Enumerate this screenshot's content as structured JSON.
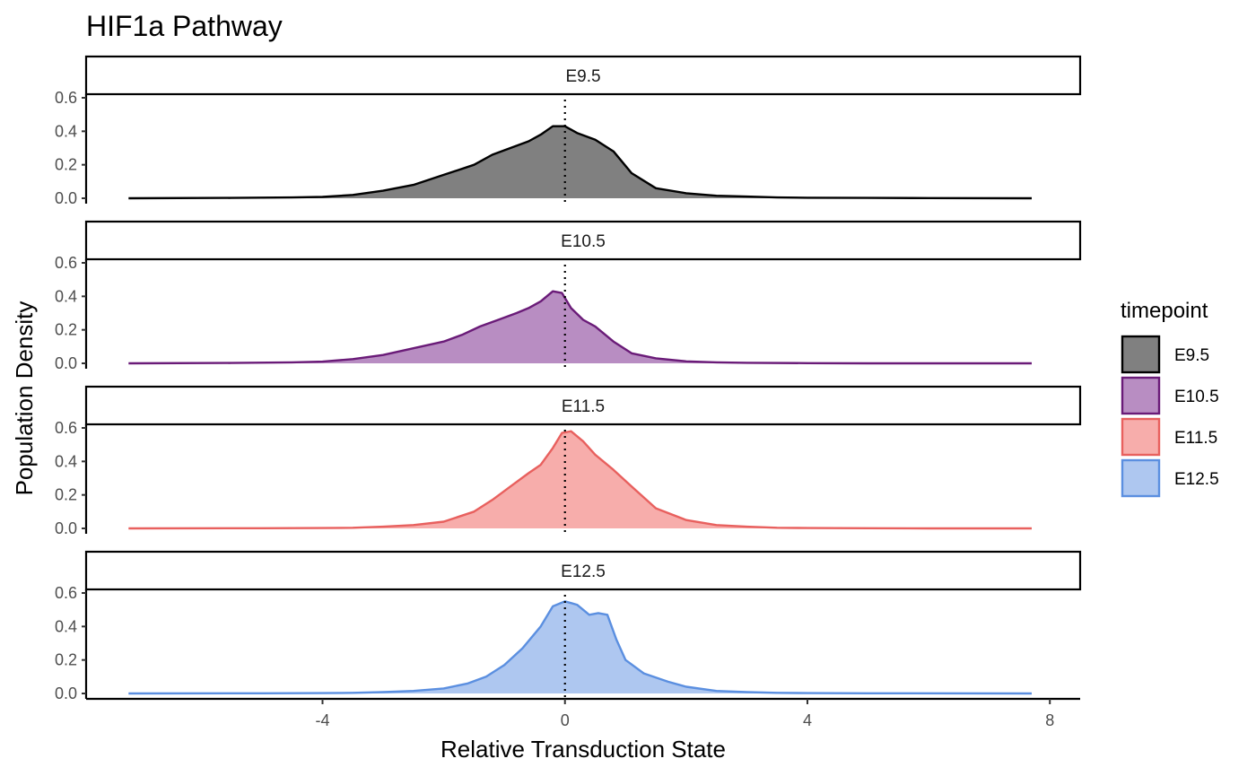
{
  "chart_data": {
    "type": "area",
    "title": "HIF1a Pathway",
    "xlabel": "Relative Transduction State",
    "ylabel": "Population Density",
    "xlim": [
      -7.9,
      8.5
    ],
    "ylim": [
      0,
      0.6
    ],
    "x_ticks": [
      -4,
      0,
      4,
      8
    ],
    "y_ticks": [
      0.0,
      0.2,
      0.4,
      0.6
    ],
    "x_tick_labels": [
      "-4",
      "0",
      "4",
      "8"
    ],
    "y_tick_labels": [
      "0.0",
      "0.2",
      "0.4",
      "0.6"
    ],
    "reference_line_x": 0,
    "reference_line_style": "dotted",
    "grid": false,
    "layout": "facet_wrap, one panel per timepoint stacked vertically",
    "legend": {
      "title": "timepoint",
      "position": "right",
      "entries": [
        "E9.5",
        "E10.5",
        "E11.5",
        "E12.5"
      ]
    },
    "series": [
      {
        "name": "E9.5",
        "strip_label": "E9.5",
        "line_color": "#000000",
        "fill_color": "#808080",
        "x": [
          -7.2,
          -5.5,
          -4.5,
          -4.0,
          -3.5,
          -3.0,
          -2.5,
          -2.0,
          -1.5,
          -1.2,
          -0.9,
          -0.6,
          -0.4,
          -0.2,
          0.0,
          0.2,
          0.5,
          0.8,
          1.1,
          1.5,
          2.0,
          2.5,
          3.0,
          3.5,
          4.0,
          5.0,
          6.0,
          7.7
        ],
        "y": [
          0.0,
          0.002,
          0.005,
          0.008,
          0.02,
          0.045,
          0.08,
          0.14,
          0.2,
          0.26,
          0.3,
          0.34,
          0.38,
          0.43,
          0.43,
          0.39,
          0.35,
          0.28,
          0.15,
          0.06,
          0.03,
          0.015,
          0.01,
          0.005,
          0.003,
          0.002,
          0.001,
          0.0
        ]
      },
      {
        "name": "E10.5",
        "strip_label": "E10.5",
        "line_color": "#6a1b78",
        "fill_color": "#b88dc2",
        "x": [
          -7.2,
          -5.5,
          -4.5,
          -4.0,
          -3.5,
          -3.0,
          -2.5,
          -2.0,
          -1.7,
          -1.4,
          -1.1,
          -0.8,
          -0.6,
          -0.4,
          -0.2,
          -0.05,
          0.1,
          0.3,
          0.5,
          0.8,
          1.1,
          1.5,
          2.0,
          2.5,
          3.0,
          4.0,
          5.0,
          7.7
        ],
        "y": [
          0.0,
          0.002,
          0.006,
          0.01,
          0.025,
          0.05,
          0.09,
          0.13,
          0.17,
          0.22,
          0.26,
          0.3,
          0.33,
          0.37,
          0.43,
          0.42,
          0.33,
          0.26,
          0.22,
          0.13,
          0.06,
          0.03,
          0.012,
          0.006,
          0.003,
          0.001,
          0.0,
          0.0
        ]
      },
      {
        "name": "E11.5",
        "strip_label": "E11.5",
        "line_color": "#e8605e",
        "fill_color": "#f7adab",
        "x": [
          -7.2,
          -5.0,
          -4.0,
          -3.5,
          -3.0,
          -2.5,
          -2.0,
          -1.5,
          -1.2,
          -0.9,
          -0.6,
          -0.4,
          -0.2,
          -0.05,
          0.1,
          0.3,
          0.5,
          0.8,
          1.1,
          1.5,
          2.0,
          2.5,
          3.0,
          3.5,
          4.0,
          5.0,
          6.0,
          7.7
        ],
        "y": [
          0.0,
          0.001,
          0.002,
          0.004,
          0.01,
          0.02,
          0.04,
          0.1,
          0.17,
          0.25,
          0.33,
          0.38,
          0.48,
          0.57,
          0.58,
          0.52,
          0.44,
          0.35,
          0.25,
          0.12,
          0.05,
          0.02,
          0.01,
          0.004,
          0.002,
          0.001,
          0.0,
          0.0
        ]
      },
      {
        "name": "E12.5",
        "strip_label": "E12.5",
        "line_color": "#5b8fe0",
        "fill_color": "#aec7f0",
        "x": [
          -7.2,
          -5.0,
          -4.0,
          -3.5,
          -3.0,
          -2.5,
          -2.0,
          -1.6,
          -1.3,
          -1.0,
          -0.7,
          -0.4,
          -0.2,
          0.0,
          0.2,
          0.4,
          0.55,
          0.7,
          0.85,
          1.0,
          1.3,
          1.7,
          2.0,
          2.5,
          3.0,
          3.5,
          4.0,
          5.0,
          7.7
        ],
        "y": [
          0.0,
          0.001,
          0.002,
          0.004,
          0.008,
          0.015,
          0.03,
          0.06,
          0.1,
          0.17,
          0.27,
          0.4,
          0.52,
          0.55,
          0.53,
          0.47,
          0.48,
          0.47,
          0.32,
          0.2,
          0.12,
          0.07,
          0.04,
          0.015,
          0.008,
          0.004,
          0.002,
          0.001,
          0.0
        ]
      }
    ]
  }
}
